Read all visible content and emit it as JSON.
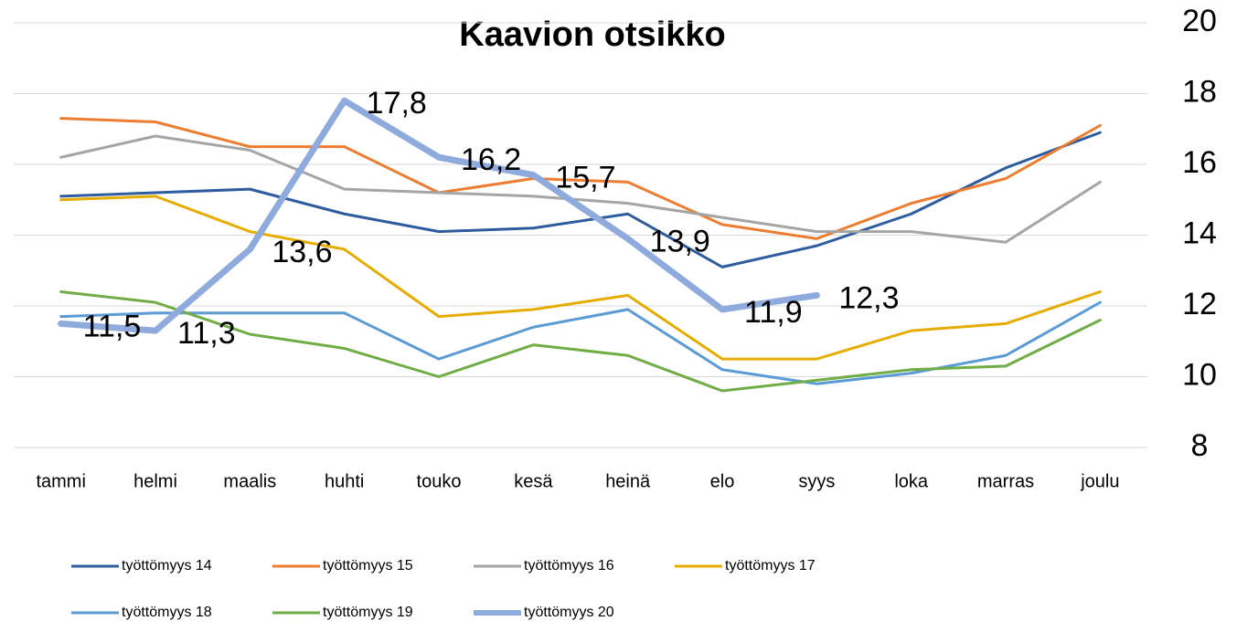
{
  "chart_data": {
    "type": "line",
    "title": "Kaavion otsikko",
    "categories": [
      "tammi",
      "helmi",
      "maalis",
      "huhti",
      "touko",
      "kesä",
      "heinä",
      "elo",
      "syys",
      "loka",
      "marras",
      "joulu"
    ],
    "series": [
      {
        "name": "työttömyys 14",
        "color": "#2e5c9e",
        "values": [
          15.1,
          15.2,
          15.3,
          14.6,
          14.1,
          14.2,
          14.6,
          13.1,
          13.7,
          14.6,
          15.9,
          16.9
        ]
      },
      {
        "name": "työttömyys 15",
        "color": "#ed7d31",
        "values": [
          17.3,
          17.2,
          16.5,
          16.5,
          15.2,
          15.6,
          15.5,
          14.3,
          13.9,
          14.9,
          15.6,
          17.1
        ]
      },
      {
        "name": "työttömyys 16",
        "color": "#a5a5a5",
        "values": [
          16.2,
          16.8,
          16.4,
          15.3,
          15.2,
          15.1,
          14.9,
          14.5,
          14.1,
          14.1,
          13.8,
          15.5
        ]
      },
      {
        "name": "työttömyys 17",
        "color": "#e6ad00",
        "values": [
          15.0,
          15.1,
          14.1,
          13.6,
          11.7,
          11.9,
          12.3,
          10.5,
          10.5,
          11.3,
          11.5,
          12.4
        ]
      },
      {
        "name": "työttömyys 18",
        "color": "#5b9bd5",
        "values": [
          11.7,
          11.8,
          11.8,
          11.8,
          10.5,
          11.4,
          11.9,
          10.2,
          9.8,
          10.1,
          10.6,
          12.1
        ]
      },
      {
        "name": "työttömyys 19",
        "color": "#70ad47",
        "values": [
          12.4,
          12.1,
          11.2,
          10.8,
          10.0,
          10.9,
          10.6,
          9.6,
          9.9,
          10.2,
          10.3,
          11.6
        ]
      },
      {
        "name": "työttömyys 20",
        "color": "#8faadc",
        "thick": true,
        "values": [
          11.5,
          11.3,
          13.6,
          17.8,
          16.2,
          15.7,
          13.9,
          11.9,
          12.3,
          null,
          null,
          null
        ],
        "value_labels": [
          "11,5",
          "11,3",
          "13,6",
          "17,8",
          "16,2",
          "15,7",
          "13,9",
          "11,9",
          "12,3",
          null,
          null,
          null
        ]
      }
    ],
    "ylim": [
      8,
      20
    ],
    "yticks": [
      8,
      10,
      12,
      14,
      16,
      18,
      20
    ],
    "y_axis_side": "right",
    "grid": true
  }
}
